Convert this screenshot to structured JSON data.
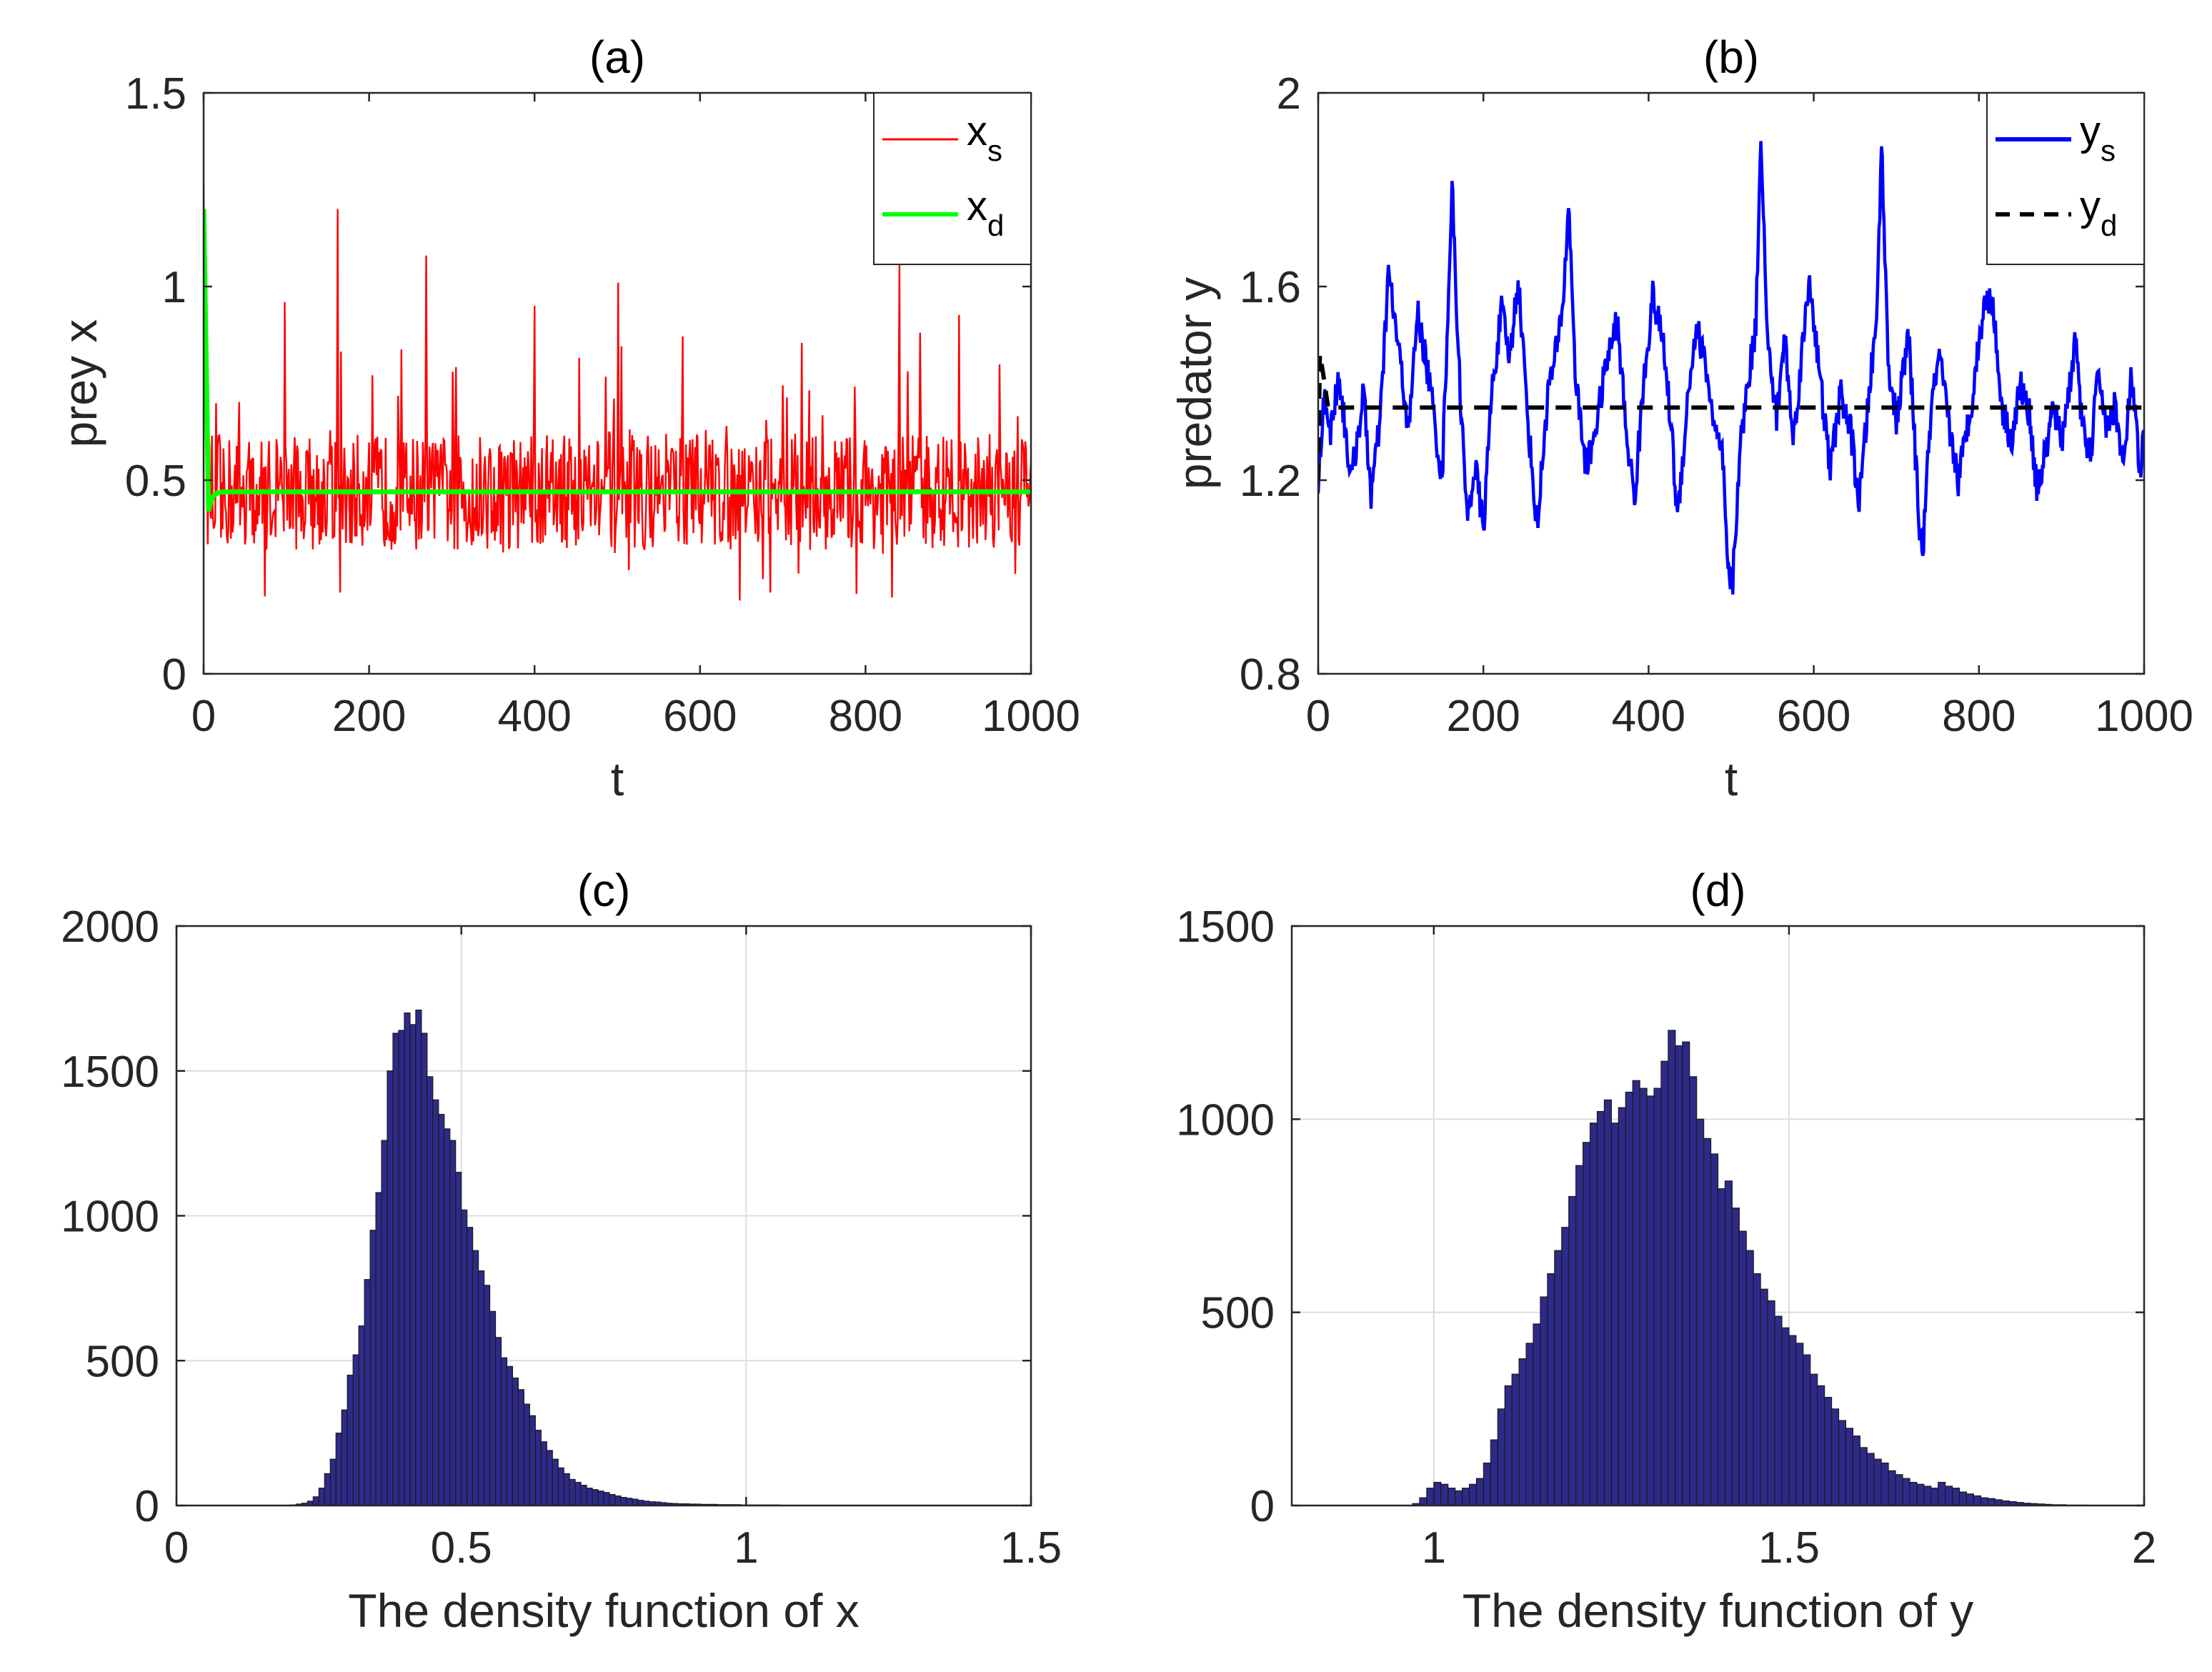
{
  "chart_data": [
    {
      "id": "a",
      "type": "line",
      "title": "(a)",
      "xlabel": "t",
      "ylabel": "prey x",
      "xlim": [
        0,
        1000
      ],
      "ylim": [
        0,
        1.5
      ],
      "xticks": [
        "0",
        "200",
        "400",
        "600",
        "800",
        "1000"
      ],
      "yticks": [
        "0",
        "0.5",
        "1",
        "1.5"
      ],
      "grid": false,
      "legend": {
        "position": "top-right",
        "entries": [
          {
            "base": "x",
            "sub": "s",
            "color": "#ff0000",
            "style": "solid"
          },
          {
            "base": "x",
            "sub": "d",
            "color": "#00ff00",
            "style": "solid"
          }
        ]
      },
      "series": [
        {
          "name": "x_s",
          "color": "#ff0000",
          "mean": 0.47,
          "start": 1.25,
          "spikes": [
            [
              0,
              1.25
            ],
            [
              74,
              0.2
            ],
            [
              98,
              0.96
            ],
            [
              162,
              1.2
            ],
            [
              165,
              0.21
            ],
            [
              269,
              1.08
            ],
            [
              400,
              0.95
            ],
            [
              501,
              1.01
            ],
            [
              685,
              0.21
            ],
            [
              841,
              1.06
            ]
          ]
        },
        {
          "name": "x_d",
          "color": "#00ff00",
          "start": 1.2,
          "min": 0.42,
          "equilibrium": 0.47
        }
      ]
    },
    {
      "id": "b",
      "type": "line",
      "title": "(b)",
      "xlabel": "t",
      "ylabel": "predator y",
      "xlim": [
        0,
        1000
      ],
      "ylim": [
        0.8,
        2
      ],
      "xticks": [
        "0",
        "200",
        "400",
        "600",
        "800",
        "1000"
      ],
      "yticks": [
        "0.8",
        "1.2",
        "1.6",
        "2"
      ],
      "grid": false,
      "legend": {
        "position": "top-right",
        "entries": [
          {
            "base": "y",
            "sub": "s",
            "color": "#0000ff",
            "style": "solid"
          },
          {
            "base": "y",
            "sub": "d",
            "color": "#000000",
            "style": "dashed"
          }
        ]
      },
      "series": [
        {
          "name": "y_s",
          "color": "#0000ff",
          "points": [
            [
              0,
              1.2
            ],
            [
              8,
              1.38
            ],
            [
              15,
              1.3
            ],
            [
              25,
              1.42
            ],
            [
              40,
              1.2
            ],
            [
              55,
              1.38
            ],
            [
              64,
              1.17
            ],
            [
              75,
              1.32
            ],
            [
              85,
              1.63
            ],
            [
              95,
              1.5
            ],
            [
              110,
              1.3
            ],
            [
              120,
              1.55
            ],
            [
              135,
              1.4
            ],
            [
              150,
              1.2
            ],
            [
              158,
              1.6
            ],
            [
              162,
              1.81
            ],
            [
              170,
              1.45
            ],
            [
              180,
              1.12
            ],
            [
              190,
              1.23
            ],
            [
              200,
              1.1
            ],
            [
              210,
              1.38
            ],
            [
              222,
              1.55
            ],
            [
              232,
              1.45
            ],
            [
              242,
              1.62
            ],
            [
              255,
              1.3
            ],
            [
              265,
              1.1
            ],
            [
              278,
              1.38
            ],
            [
              290,
              1.48
            ],
            [
              298,
              1.6
            ],
            [
              303,
              1.78
            ],
            [
              312,
              1.4
            ],
            [
              325,
              1.22
            ],
            [
              338,
              1.33
            ],
            [
              350,
              1.45
            ],
            [
              362,
              1.53
            ],
            [
              373,
              1.3
            ],
            [
              383,
              1.16
            ],
            [
              395,
              1.42
            ],
            [
              405,
              1.58
            ],
            [
              418,
              1.48
            ],
            [
              428,
              1.3
            ],
            [
              435,
              1.12
            ],
            [
              448,
              1.38
            ],
            [
              458,
              1.52
            ],
            [
              470,
              1.43
            ],
            [
              480,
              1.3
            ],
            [
              490,
              1.24
            ],
            [
              496,
              1.0
            ],
            [
              502,
              0.99
            ],
            [
              510,
              1.25
            ],
            [
              520,
              1.4
            ],
            [
              530,
              1.52
            ],
            [
              536,
              1.93
            ],
            [
              544,
              1.48
            ],
            [
              555,
              1.33
            ],
            [
              565,
              1.5
            ],
            [
              575,
              1.28
            ],
            [
              585,
              1.45
            ],
            [
              595,
              1.62
            ],
            [
              608,
              1.4
            ],
            [
              620,
              1.22
            ],
            [
              632,
              1.38
            ],
            [
              645,
              1.3
            ],
            [
              655,
              1.15
            ],
            [
              668,
              1.4
            ],
            [
              676,
              1.52
            ],
            [
              682,
              1.9
            ],
            [
              690,
              1.45
            ],
            [
              700,
              1.32
            ],
            [
              715,
              1.5
            ],
            [
              728,
              1.1
            ],
            [
              732,
              1.05
            ],
            [
              742,
              1.35
            ],
            [
              752,
              1.45
            ],
            [
              765,
              1.3
            ],
            [
              775,
              1.2
            ],
            [
              790,
              1.35
            ],
            [
              805,
              1.55
            ],
            [
              815,
              1.59
            ],
            [
              828,
              1.35
            ],
            [
              840,
              1.28
            ],
            [
              850,
              1.4
            ],
            [
              862,
              1.33
            ],
            [
              870,
              1.18
            ],
            [
              880,
              1.25
            ],
            [
              890,
              1.35
            ],
            [
              900,
              1.28
            ],
            [
              910,
              1.4
            ],
            [
              918,
              1.5
            ],
            [
              925,
              1.3
            ],
            [
              935,
              1.25
            ],
            [
              945,
              1.43
            ],
            [
              955,
              1.3
            ],
            [
              965,
              1.36
            ],
            [
              975,
              1.22
            ],
            [
              985,
              1.42
            ],
            [
              995,
              1.2
            ],
            [
              1000,
              1.3
            ]
          ]
        },
        {
          "name": "y_d",
          "color": "#000000",
          "start": 1.2,
          "peak": 1.46,
          "equilibrium": 1.35
        }
      ]
    },
    {
      "id": "c",
      "type": "histogram",
      "title": "(c)",
      "xlabel": "The density function of x",
      "ylabel": "",
      "xlim": [
        0,
        1.5
      ],
      "ylim": [
        0,
        2000
      ],
      "xticks": [
        "0",
        "0.5",
        "1",
        "1.5"
      ],
      "yticks": [
        "0",
        "500",
        "1000",
        "1500",
        "2000"
      ],
      "grid": true,
      "bar_color": "#2e2a8a",
      "bin_start": 0.2,
      "bin_width": 0.01,
      "values": [
        2,
        5,
        8,
        15,
        30,
        60,
        110,
        160,
        250,
        330,
        450,
        520,
        620,
        780,
        950,
        1080,
        1260,
        1500,
        1630,
        1640,
        1700,
        1660,
        1710,
        1630,
        1480,
        1400,
        1350,
        1300,
        1260,
        1150,
        1020,
        960,
        880,
        810,
        760,
        670,
        580,
        510,
        480,
        440,
        400,
        350,
        310,
        260,
        220,
        190,
        160,
        130,
        110,
        90,
        80,
        70,
        60,
        55,
        50,
        45,
        38,
        33,
        28,
        25,
        22,
        18,
        15,
        13,
        12,
        10,
        8,
        7,
        6,
        6,
        5,
        5,
        4,
        4,
        4,
        3,
        3,
        3,
        3,
        2,
        2,
        2,
        2,
        2,
        2,
        2,
        1,
        1,
        1,
        1,
        1,
        1,
        1,
        1,
        1,
        1,
        1,
        1,
        1,
        1,
        1,
        1,
        1,
        1,
        1,
        1,
        1,
        1,
        1,
        1
      ]
    },
    {
      "id": "d",
      "type": "histogram",
      "title": "(d)",
      "xlabel": "The density function of y",
      "ylabel": "",
      "xlim": [
        0.8,
        2
      ],
      "ylim": [
        0,
        1500
      ],
      "xticks": [
        "1",
        "1.5",
        "2"
      ],
      "yticks": [
        "0",
        "500",
        "1000",
        "1500"
      ],
      "grid": true,
      "bar_color": "#2e2a8a",
      "bin_start": 0.97,
      "bin_width": 0.01,
      "values": [
        5,
        20,
        45,
        60,
        55,
        45,
        38,
        45,
        55,
        70,
        110,
        170,
        250,
        310,
        340,
        380,
        420,
        470,
        540,
        600,
        660,
        720,
        800,
        880,
        940,
        990,
        1020,
        1050,
        990,
        1030,
        1070,
        1100,
        1080,
        1060,
        1080,
        1150,
        1230,
        1190,
        1200,
        1110,
        1000,
        950,
        910,
        820,
        840,
        770,
        710,
        660,
        600,
        560,
        530,
        490,
        460,
        440,
        420,
        390,
        340,
        310,
        280,
        250,
        220,
        200,
        180,
        150,
        135,
        120,
        110,
        90,
        80,
        70,
        60,
        55,
        50,
        45,
        60,
        50,
        45,
        35,
        30,
        25,
        20,
        18,
        15,
        12,
        10,
        8,
        6,
        5,
        4,
        3,
        2,
        2,
        1,
        1,
        1
      ]
    }
  ]
}
